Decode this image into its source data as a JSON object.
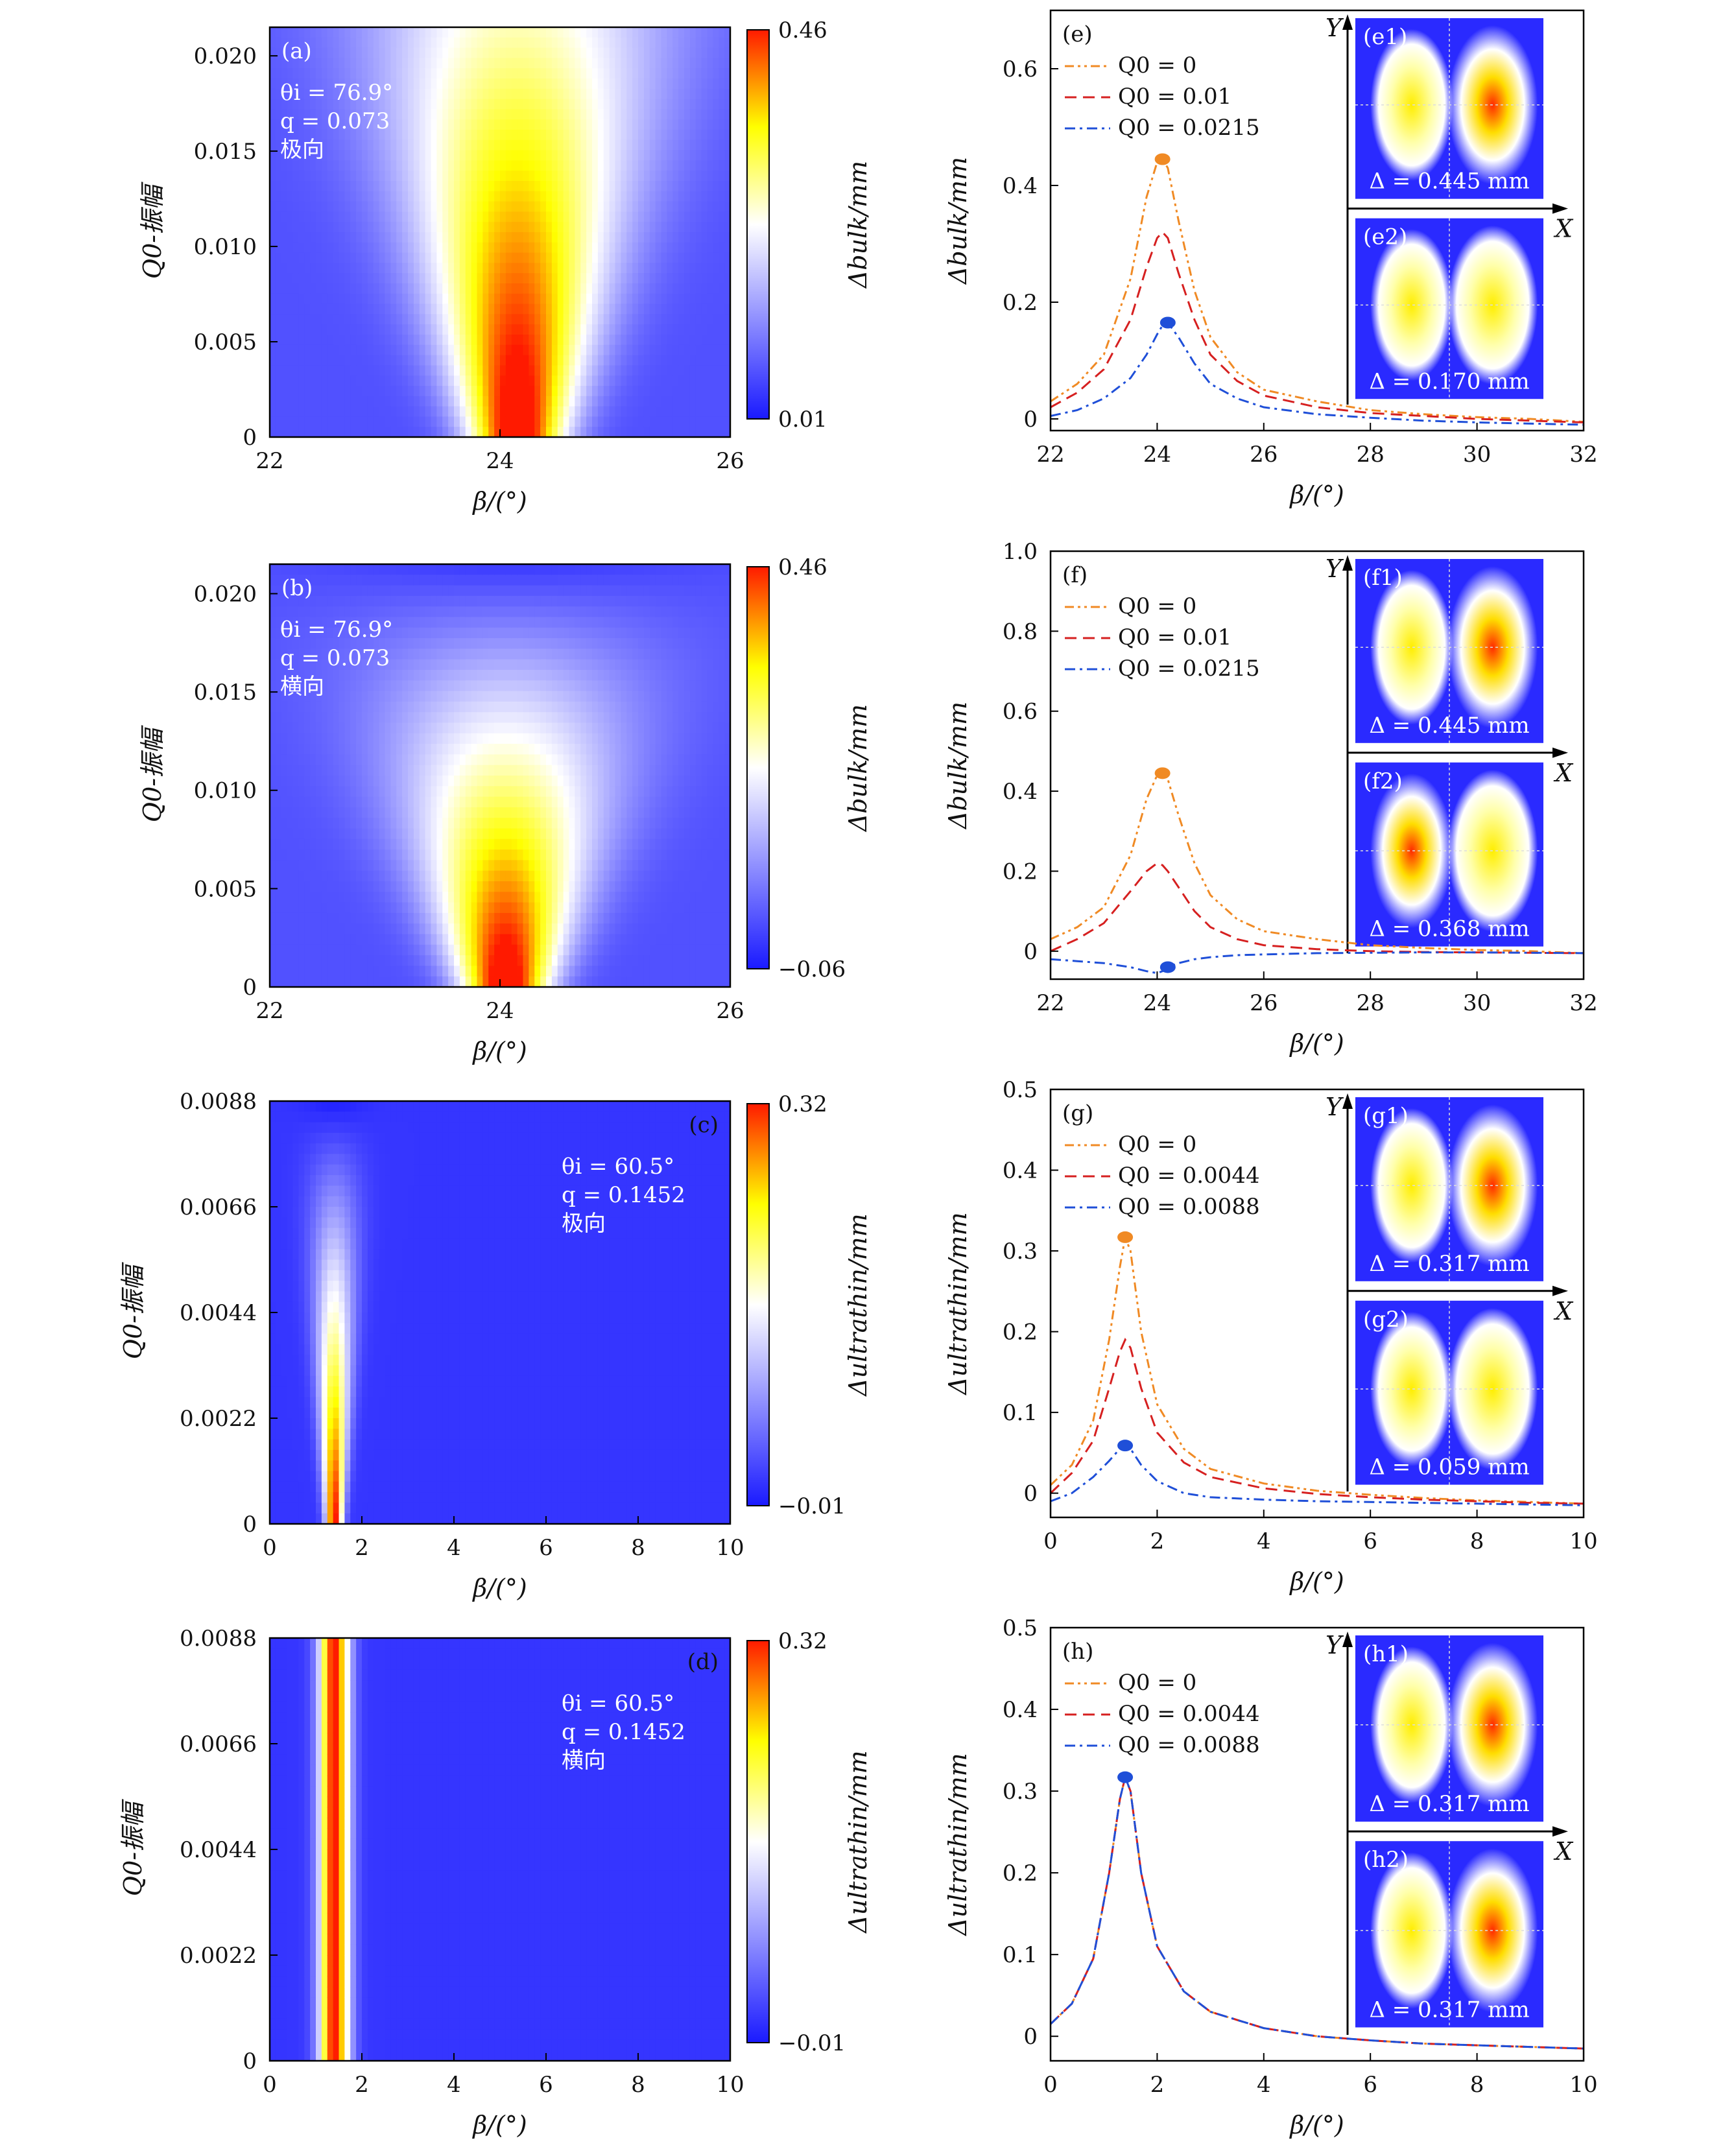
{
  "chart_data": [
    {
      "id": "a",
      "type": "heatmap",
      "panel_label": "(a)",
      "annotation": [
        "θi = 76.9°",
        "q = 0.073",
        "极向"
      ],
      "xlabel": "β/(°)",
      "ylabel": "Q0-振幅",
      "colorbar_label": "Δbulk/mm",
      "xlim": [
        22,
        26
      ],
      "ylim": [
        0,
        0.0215
      ],
      "xticks": [
        "22",
        "24",
        "26"
      ],
      "yticks": [
        "0",
        "0.005",
        "0.010",
        "0.015",
        "0.020"
      ],
      "colorbar_ticks": [
        "0.46",
        "0.01"
      ],
      "colorbar_range": [
        0.01,
        0.46
      ]
    },
    {
      "id": "b",
      "type": "heatmap",
      "panel_label": "(b)",
      "annotation": [
        "θi = 76.9°",
        "q = 0.073",
        "横向"
      ],
      "xlabel": "β/(°)",
      "ylabel": "Q0-振幅",
      "colorbar_label": "Δbulk/mm",
      "xlim": [
        22,
        26
      ],
      "ylim": [
        0,
        0.0215
      ],
      "xticks": [
        "22",
        "24",
        "26"
      ],
      "yticks": [
        "0",
        "0.005",
        "0.010",
        "0.015",
        "0.020"
      ],
      "colorbar_ticks": [
        "0.46",
        "−0.06"
      ],
      "colorbar_range": [
        -0.06,
        0.46
      ]
    },
    {
      "id": "c",
      "type": "heatmap",
      "panel_label": "(c)",
      "annotation": [
        "θi = 60.5°",
        "q = 0.1452",
        "极向"
      ],
      "xlabel": "β/(°)",
      "ylabel": "Q0-振幅",
      "colorbar_label": "Δultrathin/mm",
      "xlim": [
        0,
        10
      ],
      "ylim": [
        0,
        0.0088
      ],
      "xticks": [
        "0",
        "2",
        "4",
        "6",
        "8",
        "10"
      ],
      "yticks": [
        "0",
        "0.0022",
        "0.0044",
        "0.0066",
        "0.0088"
      ],
      "colorbar_ticks": [
        "0.32",
        "−0.01"
      ],
      "colorbar_range": [
        -0.01,
        0.32
      ]
    },
    {
      "id": "d",
      "type": "heatmap",
      "panel_label": "(d)",
      "annotation": [
        "θi = 60.5°",
        "q = 0.1452",
        "横向"
      ],
      "xlabel": "β/(°)",
      "ylabel": "Q0-振幅",
      "colorbar_label": "Δultrathin/mm",
      "xlim": [
        0,
        10
      ],
      "ylim": [
        0,
        0.0088
      ],
      "xticks": [
        "0",
        "2",
        "4",
        "6",
        "8",
        "10"
      ],
      "yticks": [
        "0",
        "0.0022",
        "0.0044",
        "0.0066",
        "0.0088"
      ],
      "colorbar_ticks": [
        "0.32",
        "−0.01"
      ],
      "colorbar_range": [
        -0.01,
        0.32
      ]
    },
    {
      "id": "e",
      "type": "line",
      "panel_label": "(e)",
      "xlabel": "β/(°)",
      "ylabel": "Δbulk/mm",
      "xlim": [
        22,
        32
      ],
      "ylim": [
        -0.02,
        0.7
      ],
      "xticks": [
        "22",
        "24",
        "26",
        "28",
        "30",
        "32"
      ],
      "yticks": [
        "0",
        "0.2",
        "0.4",
        "0.6"
      ],
      "legend": [
        "Q0 = 0",
        "Q0 = 0.01",
        "Q0 = 0.0215"
      ],
      "x": [
        22,
        22.5,
        23,
        23.5,
        23.8,
        24,
        24.1,
        24.2,
        24.4,
        24.7,
        25,
        25.5,
        26,
        27,
        28,
        29,
        30,
        31,
        32
      ],
      "series": [
        {
          "name": "Q0 = 0",
          "values": [
            0.03,
            0.06,
            0.11,
            0.24,
            0.38,
            0.44,
            0.445,
            0.43,
            0.34,
            0.22,
            0.14,
            0.08,
            0.05,
            0.03,
            0.015,
            0.008,
            0.003,
            0.0,
            -0.005
          ]
        },
        {
          "name": "Q0 = 0.01",
          "values": [
            0.02,
            0.045,
            0.085,
            0.17,
            0.26,
            0.31,
            0.32,
            0.31,
            0.25,
            0.17,
            0.11,
            0.065,
            0.04,
            0.02,
            0.01,
            0.005,
            0.0,
            -0.003,
            -0.006
          ]
        },
        {
          "name": "Q0 = 0.0215",
          "values": [
            0.005,
            0.015,
            0.035,
            0.07,
            0.11,
            0.145,
            0.16,
            0.165,
            0.14,
            0.095,
            0.06,
            0.035,
            0.02,
            0.008,
            0.002,
            -0.003,
            -0.006,
            -0.008,
            -0.01
          ]
        }
      ],
      "markers": [
        {
          "x": 24.1,
          "y": 0.445,
          "series": 0
        },
        {
          "x": 24.2,
          "y": 0.165,
          "series": 2
        }
      ],
      "insets": [
        {
          "label": "(e1)",
          "value": "Δ = 0.445 mm"
        },
        {
          "label": "(e2)",
          "value": "Δ = 0.170 mm"
        }
      ]
    },
    {
      "id": "f",
      "type": "line",
      "panel_label": "(f)",
      "xlabel": "β/(°)",
      "ylabel": "Δbulk/mm",
      "xlim": [
        22,
        32
      ],
      "ylim": [
        -0.07,
        1.0
      ],
      "xticks": [
        "22",
        "24",
        "26",
        "28",
        "30",
        "32"
      ],
      "yticks": [
        "0",
        "0.2",
        "0.4",
        "0.6",
        "0.8",
        "1.0"
      ],
      "legend": [
        "Q0 = 0",
        "Q0 = 0.01",
        "Q0 = 0.0215"
      ],
      "x": [
        22,
        22.5,
        23,
        23.5,
        23.8,
        24,
        24.1,
        24.2,
        24.4,
        24.7,
        25,
        25.5,
        26,
        27,
        28,
        29,
        30,
        31,
        32
      ],
      "series": [
        {
          "name": "Q0 = 0",
          "values": [
            0.03,
            0.06,
            0.11,
            0.24,
            0.38,
            0.44,
            0.445,
            0.43,
            0.34,
            0.22,
            0.14,
            0.08,
            0.05,
            0.03,
            0.015,
            0.008,
            0.003,
            0.0,
            -0.005
          ]
        },
        {
          "name": "Q0 = 0.01",
          "values": [
            0.0,
            0.03,
            0.07,
            0.15,
            0.2,
            0.22,
            0.215,
            0.2,
            0.16,
            0.1,
            0.06,
            0.03,
            0.015,
            0.005,
            0.0,
            -0.002,
            -0.003,
            -0.004,
            -0.005
          ]
        },
        {
          "name": "Q0 = 0.0215",
          "values": [
            -0.02,
            -0.025,
            -0.03,
            -0.04,
            -0.05,
            -0.055,
            -0.05,
            -0.04,
            -0.03,
            -0.02,
            -0.015,
            -0.01,
            -0.008,
            -0.005,
            -0.004,
            -0.003,
            -0.003,
            -0.004,
            -0.005
          ]
        }
      ],
      "markers": [
        {
          "x": 24.1,
          "y": 0.445,
          "series": 0
        },
        {
          "x": 24.2,
          "y": -0.04,
          "series": 2
        }
      ],
      "insets": [
        {
          "label": "(f1)",
          "value": "Δ = 0.445 mm"
        },
        {
          "label": "(f2)",
          "value": "Δ = 0.368 mm"
        }
      ]
    },
    {
      "id": "g",
      "type": "line",
      "panel_label": "(g)",
      "xlabel": "β/(°)",
      "ylabel": "Δultrathin/mm",
      "xlim": [
        0,
        10
      ],
      "ylim": [
        -0.03,
        0.5
      ],
      "xticks": [
        "0",
        "2",
        "4",
        "6",
        "8",
        "10"
      ],
      "yticks": [
        "0",
        "0.1",
        "0.2",
        "0.3",
        "0.4",
        "0.5"
      ],
      "legend": [
        "Q0 = 0",
        "Q0 = 0.0044",
        "Q0 = 0.0088"
      ],
      "x": [
        0,
        0.4,
        0.8,
        1.1,
        1.3,
        1.4,
        1.5,
        1.7,
        2.0,
        2.5,
        3.0,
        4.0,
        5.0,
        6.0,
        7.0,
        8.0,
        9.0,
        10.0
      ],
      "series": [
        {
          "name": "Q0 = 0",
          "values": [
            0.01,
            0.035,
            0.09,
            0.19,
            0.28,
            0.317,
            0.3,
            0.2,
            0.11,
            0.055,
            0.03,
            0.012,
            0.003,
            -0.002,
            -0.006,
            -0.009,
            -0.011,
            -0.013
          ]
        },
        {
          "name": "Q0 = 0.0044",
          "values": [
            0.0,
            0.025,
            0.065,
            0.13,
            0.175,
            0.19,
            0.18,
            0.13,
            0.075,
            0.038,
            0.02,
            0.006,
            -0.001,
            -0.005,
            -0.008,
            -0.01,
            -0.012,
            -0.013
          ]
        },
        {
          "name": "Q0 = 0.0088",
          "values": [
            -0.01,
            0.0,
            0.02,
            0.04,
            0.055,
            0.059,
            0.055,
            0.035,
            0.015,
            0.0,
            -0.005,
            -0.008,
            -0.01,
            -0.011,
            -0.012,
            -0.013,
            -0.014,
            -0.015
          ]
        }
      ],
      "markers": [
        {
          "x": 1.4,
          "y": 0.317,
          "series": 0
        },
        {
          "x": 1.4,
          "y": 0.059,
          "series": 2
        }
      ],
      "insets": [
        {
          "label": "(g1)",
          "value": "Δ = 0.317 mm"
        },
        {
          "label": "(g2)",
          "value": "Δ = 0.059 mm"
        }
      ]
    },
    {
      "id": "h",
      "type": "line",
      "panel_label": "(h)",
      "xlabel": "β/(°)",
      "ylabel": "Δultrathin/mm",
      "xlim": [
        0,
        10
      ],
      "ylim": [
        -0.03,
        0.5
      ],
      "xticks": [
        "0",
        "2",
        "4",
        "6",
        "8",
        "10"
      ],
      "yticks": [
        "0",
        "0.1",
        "0.2",
        "0.3",
        "0.4",
        "0.5"
      ],
      "legend": [
        "Q0 = 0",
        "Q0 = 0.0044",
        "Q0 = 0.0088"
      ],
      "x": [
        0,
        0.4,
        0.8,
        1.1,
        1.3,
        1.4,
        1.5,
        1.7,
        2.0,
        2.5,
        3.0,
        4.0,
        5.0,
        6.0,
        7.0,
        8.0,
        9.0,
        10.0
      ],
      "series": [
        {
          "name": "Q0 = 0",
          "values": [
            0.015,
            0.04,
            0.095,
            0.2,
            0.29,
            0.317,
            0.3,
            0.2,
            0.11,
            0.055,
            0.03,
            0.01,
            0.0,
            -0.005,
            -0.009,
            -0.011,
            -0.013,
            -0.015
          ]
        },
        {
          "name": "Q0 = 0.0044",
          "values": [
            0.015,
            0.04,
            0.095,
            0.2,
            0.29,
            0.317,
            0.3,
            0.2,
            0.11,
            0.055,
            0.03,
            0.01,
            0.0,
            -0.005,
            -0.009,
            -0.011,
            -0.013,
            -0.015
          ]
        },
        {
          "name": "Q0 = 0.0088",
          "values": [
            0.015,
            0.04,
            0.095,
            0.2,
            0.29,
            0.317,
            0.3,
            0.2,
            0.11,
            0.055,
            0.03,
            0.01,
            0.0,
            -0.005,
            -0.009,
            -0.011,
            -0.013,
            -0.015
          ]
        }
      ],
      "markers": [
        {
          "x": 1.4,
          "y": 0.317,
          "series": 2
        }
      ],
      "insets": [
        {
          "label": "(h1)",
          "value": "Δ = 0.317 mm"
        },
        {
          "label": "(h2)",
          "value": "Δ = 0.317 mm"
        }
      ]
    }
  ],
  "colors": {
    "series": [
      "#f08a24",
      "#d62020",
      "#1f4fd8"
    ],
    "heat_low": "#1a1aff",
    "heat_mid": "#ffffff",
    "heat_high": "#ffff00",
    "heat_top": "#ff0000"
  },
  "inset_axes": {
    "y_label": "Y",
    "x_label": "X"
  }
}
